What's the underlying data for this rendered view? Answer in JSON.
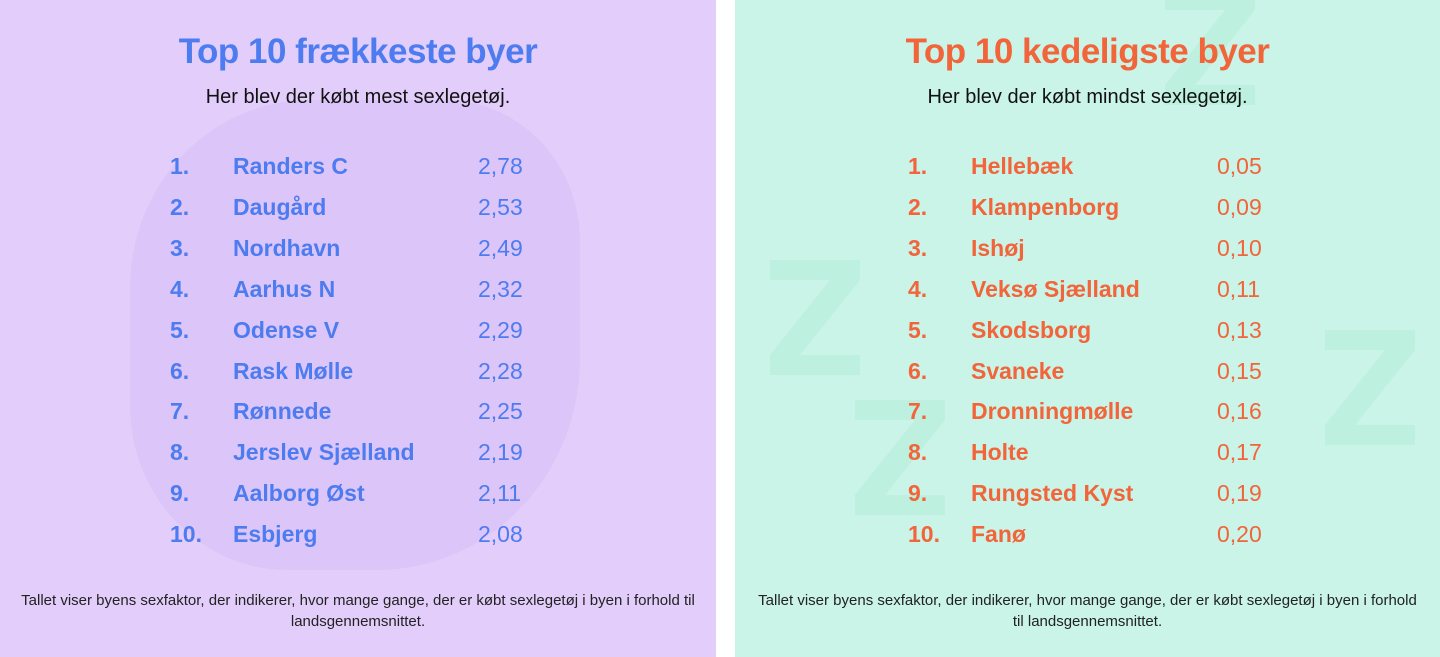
{
  "left": {
    "title": "Top 10 frækkeste byer",
    "subtitle": "Her blev der købt mest sexlegetøj.",
    "rows": [
      {
        "rank": "1.",
        "name": "Randers C",
        "value": "2,78"
      },
      {
        "rank": "2.",
        "name": "Daugård",
        "value": "2,53"
      },
      {
        "rank": "3.",
        "name": "Nordhavn",
        "value": "2,49"
      },
      {
        "rank": "4.",
        "name": "Aarhus N",
        "value": "2,32"
      },
      {
        "rank": "5.",
        "name": "Odense V",
        "value": "2,29"
      },
      {
        "rank": "6.",
        "name": "Rask Mølle",
        "value": "2,28"
      },
      {
        "rank": "7.",
        "name": "Rønnede",
        "value": "2,25"
      },
      {
        "rank": "8.",
        "name": "Jerslev Sjælland",
        "value": "2,19"
      },
      {
        "rank": "9.",
        "name": "Aalborg Øst",
        "value": "2,11"
      },
      {
        "rank": "10.",
        "name": "Esbjerg",
        "value": "2,08"
      }
    ],
    "footer": "Tallet viser byens sexfaktor, der indikerer, hvor mange gange, der er købt sexlegetøj i byen i forhold til landsgennemsnittet.",
    "accent": "#4d7bf0",
    "background": "#e3cefb"
  },
  "right": {
    "title": "Top 10 kedeligste byer",
    "subtitle": "Her blev der købt mindst sexlegetøj.",
    "rows": [
      {
        "rank": "1.",
        "name": "Hellebæk",
        "value": "0,05"
      },
      {
        "rank": "2.",
        "name": "Klampenborg",
        "value": "0,09"
      },
      {
        "rank": "3.",
        "name": "Ishøj",
        "value": "0,10"
      },
      {
        "rank": "4.",
        "name": "Veksø Sjælland",
        "value": "0,11"
      },
      {
        "rank": "5.",
        "name": "Skodsborg",
        "value": "0,13"
      },
      {
        "rank": "6.",
        "name": "Svaneke",
        "value": "0,15"
      },
      {
        "rank": "7.",
        "name": "Dronningmølle",
        "value": "0,16"
      },
      {
        "rank": "8.",
        "name": "Holte",
        "value": "0,17"
      },
      {
        "rank": "9.",
        "name": "Rungsted Kyst",
        "value": "0,19"
      },
      {
        "rank": "10.",
        "name": "Fanø",
        "value": "0,20"
      }
    ],
    "footer": "Tallet viser byens sexfaktor, der indikerer, hvor mange gange, der er købt sexlegetøj i byen i forhold til landsgennemsnittet.",
    "accent": "#f2643a",
    "background": "#c9f4e7"
  }
}
